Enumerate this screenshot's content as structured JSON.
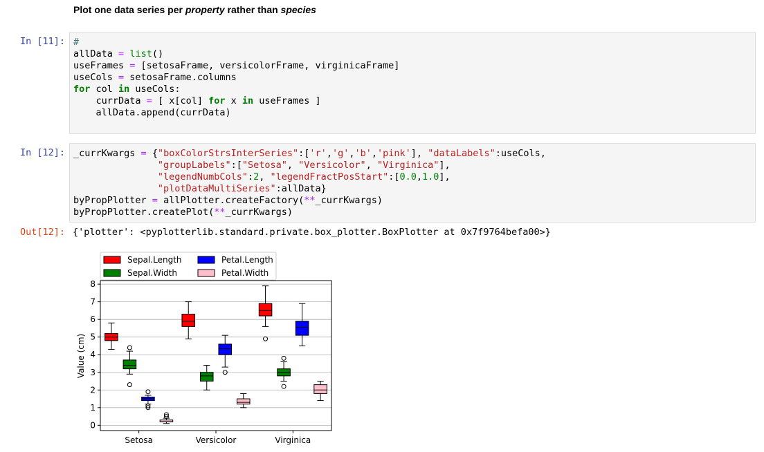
{
  "heading": {
    "prefix": "Plot one data series per ",
    "em1": "property",
    "middle": " rather than ",
    "em2": "species"
  },
  "cells": [
    {
      "prompt": "In [11]:",
      "lines": [
        "#",
        "allData = list()",
        "useFrames = [setosaFrame, versicolorFrame, virginicaFrame]",
        "useCols = setosaFrame.columns",
        "for col in useCols:",
        "    currData = [ x[col] for x in useFrames ]",
        "    allData.append(currData)"
      ]
    },
    {
      "prompt": "In [12]:",
      "lines": [
        "_currKwargs = {\"boxColorStrsInterSeries\":['r','g','b','pink'], \"dataLabels\":useCols,",
        "               \"groupLabels\":[\"Setosa\", \"Versicolor\", \"Virginica\"],",
        "               \"legendNumbCols\":2, \"legendFractPosStart\":[0.0,1.0],",
        "               \"plotDataMultiSeries\":allData}",
        "byPropPlotter = allPlotter.createFactory(**_currKwargs)",
        "byPropPlotter.createPlot(**_currKwargs)"
      ]
    }
  ],
  "output": {
    "prompt": "Out[12]:",
    "text": "{'plotter': <pyplotterlib.standard.private.box_plotter.BoxPlotter at 0x7f9764befa00>}"
  },
  "chart_data": {
    "type": "box",
    "ylabel": "Value (cm)",
    "ylim": [
      -0.3,
      8.2
    ],
    "yticks": [
      "0",
      "1",
      "2",
      "3",
      "4",
      "5",
      "6",
      "7",
      "8"
    ],
    "grid": true,
    "legend_position": "top-left, above axes, 2 columns",
    "categories": [
      "Setosa",
      "Versicolor",
      "Virginica"
    ],
    "series": [
      {
        "name": "Sepal.Length",
        "color": "#ff0000",
        "boxes": [
          {
            "whislo": 4.3,
            "q1": 4.8,
            "med": 5.0,
            "q3": 5.2,
            "whishi": 5.8,
            "fliers": []
          },
          {
            "whislo": 4.9,
            "q1": 5.6,
            "med": 5.9,
            "q3": 6.3,
            "whishi": 7.0,
            "fliers": []
          },
          {
            "whislo": 5.6,
            "q1": 6.2,
            "med": 6.5,
            "q3": 6.9,
            "whishi": 7.9,
            "fliers": [
              4.9
            ]
          }
        ]
      },
      {
        "name": "Sepal.Width",
        "color": "#008000",
        "boxes": [
          {
            "whislo": 2.9,
            "q1": 3.2,
            "med": 3.4,
            "q3": 3.7,
            "whishi": 4.2,
            "fliers": [
              4.4,
              2.3
            ]
          },
          {
            "whislo": 2.0,
            "q1": 2.5,
            "med": 2.8,
            "q3": 3.0,
            "whishi": 3.4,
            "fliers": []
          },
          {
            "whislo": 2.5,
            "q1": 2.8,
            "med": 3.0,
            "q3": 3.2,
            "whishi": 3.6,
            "fliers": [
              3.8,
              2.2
            ]
          }
        ]
      },
      {
        "name": "Petal.Length",
        "color": "#0000ff",
        "boxes": [
          {
            "whislo": 1.2,
            "q1": 1.4,
            "med": 1.5,
            "q3": 1.6,
            "whishi": 1.7,
            "fliers": [
              1.9,
              1.0,
              1.1
            ]
          },
          {
            "whislo": 3.3,
            "q1": 4.0,
            "med": 4.35,
            "q3": 4.6,
            "whishi": 5.1,
            "fliers": [
              3.0
            ]
          },
          {
            "whislo": 4.5,
            "q1": 5.1,
            "med": 5.55,
            "q3": 5.9,
            "whishi": 6.9,
            "fliers": []
          }
        ]
      },
      {
        "name": "Petal.Width",
        "color": "#ffc0cb",
        "boxes": [
          {
            "whislo": 0.1,
            "q1": 0.2,
            "med": 0.2,
            "q3": 0.3,
            "whishi": 0.4,
            "fliers": [
              0.5,
              0.6
            ]
          },
          {
            "whislo": 1.0,
            "q1": 1.2,
            "med": 1.3,
            "q3": 1.5,
            "whishi": 1.8,
            "fliers": []
          },
          {
            "whislo": 1.4,
            "q1": 1.8,
            "med": 2.0,
            "q3": 2.3,
            "whishi": 2.5,
            "fliers": []
          }
        ]
      }
    ]
  }
}
